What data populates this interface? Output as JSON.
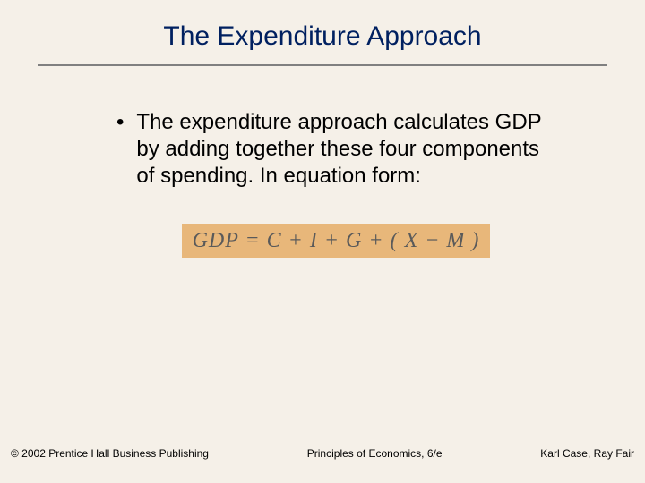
{
  "slide": {
    "title": "The Expenditure Approach",
    "title_color": "#002060",
    "title_fontsize": 30,
    "divider_color": "#808080",
    "background_color": "#f5f0e8",
    "bullet": {
      "marker": "•",
      "text": "The expenditure approach calculates GDP by adding together these four components of spending.  In equation form:",
      "fontsize": 24,
      "color": "#000000"
    },
    "equation": {
      "text": "GDP = C + I + G + ( X − M )",
      "background_color": "#e8b77a",
      "text_color": "#5a5a5a",
      "font_family": "Times New Roman",
      "font_style": "italic",
      "fontsize": 24
    },
    "footer": {
      "left": "© 2002 Prentice Hall Business Publishing",
      "center": "Principles of Economics, 6/e",
      "right": "Karl Case, Ray Fair",
      "fontsize": 12,
      "color": "#000000"
    }
  }
}
